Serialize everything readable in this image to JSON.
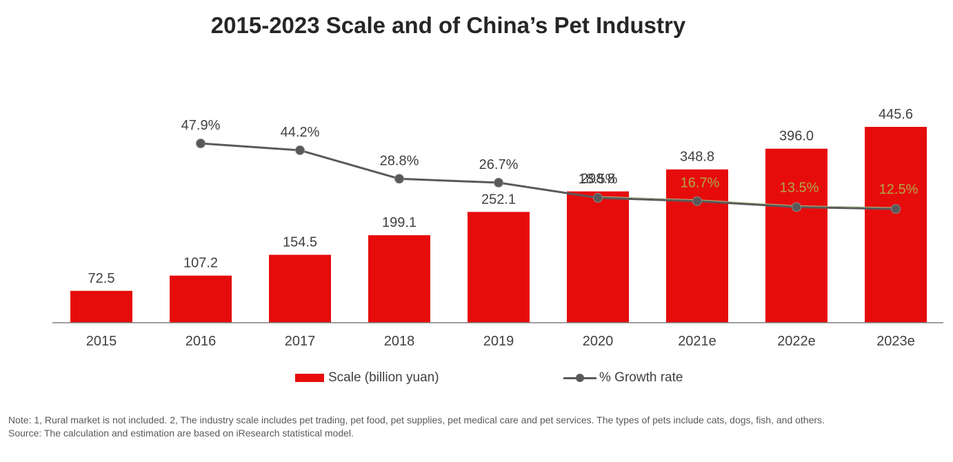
{
  "title": "2015-2023 Scale and of China’s Pet Industry",
  "chart_data": {
    "type": "bar",
    "categories": [
      "2015",
      "2016",
      "2017",
      "2018",
      "2019",
      "2020",
      "2021e",
      "2022e",
      "2023e"
    ],
    "series": [
      {
        "name": "Scale (billion yuan)",
        "type": "bar",
        "color": "#e60c0c",
        "values": [
          72.5,
          107.2,
          154.5,
          199.1,
          252.1,
          298.8,
          348.8,
          396.0,
          445.6
        ],
        "labels": [
          "72.5",
          "107.2",
          "154.5",
          "199.1",
          "252.1",
          "298.8",
          "348.8",
          "396.0",
          "445.6"
        ]
      },
      {
        "name": "% Growth rate",
        "type": "line",
        "color": "#595959",
        "values": [
          null,
          47.9,
          44.2,
          28.8,
          26.7,
          18.5,
          16.7,
          13.5,
          12.5
        ],
        "labels": [
          "",
          "47.9%",
          "44.2%",
          "28.8%",
          "26.7%",
          "18.5%",
          "16.7%",
          "13.5%",
          "12.5%"
        ]
      }
    ],
    "legend_position": "bottom",
    "grid": false
  },
  "legend": {
    "bar_label": "Scale (billion yuan)",
    "line_label": "% Growth rate"
  },
  "notes": {
    "note": "Note: 1, Rural market is not included. 2, The industry scale includes pet trading, pet food, pet supplies, pet medical care and pet services. The types of pets include cats, dogs, fish, and others.",
    "source": "Source: The calculation and estimation are based on iResearch statistical model."
  },
  "colors": {
    "bar": "#e60c0c",
    "line": "#595959",
    "line_highlight": "#a9c28a",
    "label_on_bar": "#b0a84a"
  }
}
